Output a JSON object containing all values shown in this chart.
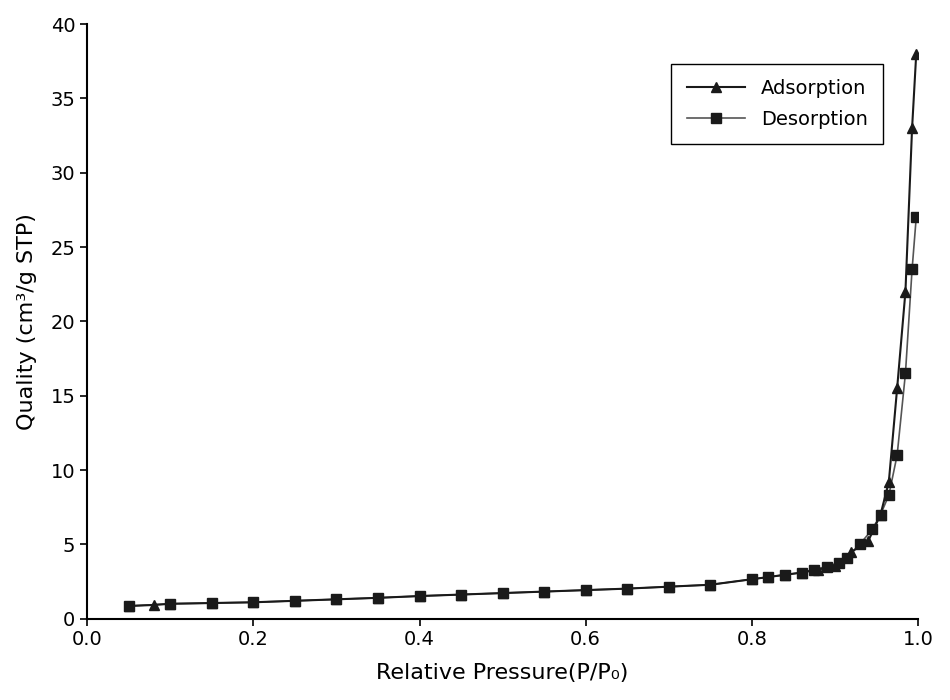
{
  "adsorption_x": [
    0.05,
    0.08,
    0.1,
    0.15,
    0.2,
    0.25,
    0.3,
    0.35,
    0.4,
    0.45,
    0.5,
    0.55,
    0.6,
    0.65,
    0.7,
    0.75,
    0.8,
    0.82,
    0.84,
    0.86,
    0.88,
    0.9,
    0.92,
    0.94,
    0.955,
    0.965,
    0.975,
    0.985,
    0.993,
    0.998
  ],
  "adsorption_y": [
    0.85,
    0.92,
    1.0,
    1.05,
    1.1,
    1.2,
    1.3,
    1.4,
    1.52,
    1.62,
    1.72,
    1.82,
    1.92,
    2.02,
    2.15,
    2.28,
    2.65,
    2.8,
    2.95,
    3.1,
    3.3,
    3.55,
    4.5,
    5.2,
    7.0,
    9.2,
    15.5,
    22.0,
    33.0,
    38.0
  ],
  "desorption_x": [
    0.05,
    0.1,
    0.15,
    0.2,
    0.25,
    0.3,
    0.35,
    0.4,
    0.45,
    0.5,
    0.55,
    0.6,
    0.65,
    0.7,
    0.75,
    0.8,
    0.82,
    0.84,
    0.86,
    0.875,
    0.89,
    0.905,
    0.915,
    0.93,
    0.945,
    0.955,
    0.965,
    0.975,
    0.985,
    0.993,
    0.998
  ],
  "desorption_y": [
    0.85,
    1.0,
    1.05,
    1.1,
    1.2,
    1.3,
    1.4,
    1.52,
    1.62,
    1.72,
    1.82,
    1.92,
    2.02,
    2.15,
    2.28,
    2.65,
    2.8,
    2.95,
    3.1,
    3.3,
    3.5,
    3.75,
    4.1,
    5.0,
    6.0,
    7.0,
    8.3,
    11.0,
    16.5,
    23.5,
    27.0
  ],
  "xlabel": "Relative Pressure(P/P₀)",
  "ylabel": "Quality (cm³/g STP)",
  "xlim": [
    0.0,
    1.0
  ],
  "ylim": [
    0,
    40
  ],
  "xticks": [
    0.0,
    0.2,
    0.4,
    0.6,
    0.8,
    1.0
  ],
  "yticks": [
    0,
    5,
    10,
    15,
    20,
    25,
    30,
    35,
    40
  ],
  "adsorption_label": "Adsorption",
  "desorption_label": "Desorption",
  "line_color": "#1a1a1a",
  "desorption_line_color": "#555555",
  "marker_adsorption": "^",
  "marker_desorption": "s",
  "marker_size": 7,
  "adsorption_linewidth": 1.5,
  "desorption_linewidth": 1.2,
  "legend_fontsize": 14,
  "axis_label_fontsize": 16,
  "tick_fontsize": 14
}
